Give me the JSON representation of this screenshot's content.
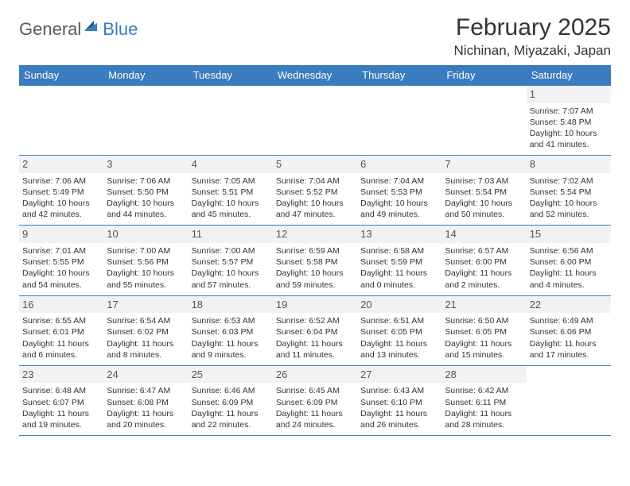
{
  "logo": {
    "part1": "General",
    "part2": "Blue"
  },
  "title": "February 2025",
  "location": "Nichinan, Miyazaki, Japan",
  "colors": {
    "header_bar": "#3b7bbf",
    "logo_gray": "#5a5a5a",
    "logo_blue": "#3b7bbf",
    "daynum_bg": "#f2f2f2",
    "text": "#333333",
    "row_border": "#3b7bbf"
  },
  "weekdays": [
    "Sunday",
    "Monday",
    "Tuesday",
    "Wednesday",
    "Thursday",
    "Friday",
    "Saturday"
  ],
  "weeks": [
    [
      {
        "empty": true
      },
      {
        "empty": true
      },
      {
        "empty": true
      },
      {
        "empty": true
      },
      {
        "empty": true
      },
      {
        "empty": true
      },
      {
        "num": "1",
        "sunrise": "Sunrise: 7:07 AM",
        "sunset": "Sunset: 5:48 PM",
        "daylight": "Daylight: 10 hours and 41 minutes."
      }
    ],
    [
      {
        "num": "2",
        "sunrise": "Sunrise: 7:06 AM",
        "sunset": "Sunset: 5:49 PM",
        "daylight": "Daylight: 10 hours and 42 minutes."
      },
      {
        "num": "3",
        "sunrise": "Sunrise: 7:06 AM",
        "sunset": "Sunset: 5:50 PM",
        "daylight": "Daylight: 10 hours and 44 minutes."
      },
      {
        "num": "4",
        "sunrise": "Sunrise: 7:05 AM",
        "sunset": "Sunset: 5:51 PM",
        "daylight": "Daylight: 10 hours and 45 minutes."
      },
      {
        "num": "5",
        "sunrise": "Sunrise: 7:04 AM",
        "sunset": "Sunset: 5:52 PM",
        "daylight": "Daylight: 10 hours and 47 minutes."
      },
      {
        "num": "6",
        "sunrise": "Sunrise: 7:04 AM",
        "sunset": "Sunset: 5:53 PM",
        "daylight": "Daylight: 10 hours and 49 minutes."
      },
      {
        "num": "7",
        "sunrise": "Sunrise: 7:03 AM",
        "sunset": "Sunset: 5:54 PM",
        "daylight": "Daylight: 10 hours and 50 minutes."
      },
      {
        "num": "8",
        "sunrise": "Sunrise: 7:02 AM",
        "sunset": "Sunset: 5:54 PM",
        "daylight": "Daylight: 10 hours and 52 minutes."
      }
    ],
    [
      {
        "num": "9",
        "sunrise": "Sunrise: 7:01 AM",
        "sunset": "Sunset: 5:55 PM",
        "daylight": "Daylight: 10 hours and 54 minutes."
      },
      {
        "num": "10",
        "sunrise": "Sunrise: 7:00 AM",
        "sunset": "Sunset: 5:56 PM",
        "daylight": "Daylight: 10 hours and 55 minutes."
      },
      {
        "num": "11",
        "sunrise": "Sunrise: 7:00 AM",
        "sunset": "Sunset: 5:57 PM",
        "daylight": "Daylight: 10 hours and 57 minutes."
      },
      {
        "num": "12",
        "sunrise": "Sunrise: 6:59 AM",
        "sunset": "Sunset: 5:58 PM",
        "daylight": "Daylight: 10 hours and 59 minutes."
      },
      {
        "num": "13",
        "sunrise": "Sunrise: 6:58 AM",
        "sunset": "Sunset: 5:59 PM",
        "daylight": "Daylight: 11 hours and 0 minutes."
      },
      {
        "num": "14",
        "sunrise": "Sunrise: 6:57 AM",
        "sunset": "Sunset: 6:00 PM",
        "daylight": "Daylight: 11 hours and 2 minutes."
      },
      {
        "num": "15",
        "sunrise": "Sunrise: 6:56 AM",
        "sunset": "Sunset: 6:00 PM",
        "daylight": "Daylight: 11 hours and 4 minutes."
      }
    ],
    [
      {
        "num": "16",
        "sunrise": "Sunrise: 6:55 AM",
        "sunset": "Sunset: 6:01 PM",
        "daylight": "Daylight: 11 hours and 6 minutes."
      },
      {
        "num": "17",
        "sunrise": "Sunrise: 6:54 AM",
        "sunset": "Sunset: 6:02 PM",
        "daylight": "Daylight: 11 hours and 8 minutes."
      },
      {
        "num": "18",
        "sunrise": "Sunrise: 6:53 AM",
        "sunset": "Sunset: 6:03 PM",
        "daylight": "Daylight: 11 hours and 9 minutes."
      },
      {
        "num": "19",
        "sunrise": "Sunrise: 6:52 AM",
        "sunset": "Sunset: 6:04 PM",
        "daylight": "Daylight: 11 hours and 11 minutes."
      },
      {
        "num": "20",
        "sunrise": "Sunrise: 6:51 AM",
        "sunset": "Sunset: 6:05 PM",
        "daylight": "Daylight: 11 hours and 13 minutes."
      },
      {
        "num": "21",
        "sunrise": "Sunrise: 6:50 AM",
        "sunset": "Sunset: 6:05 PM",
        "daylight": "Daylight: 11 hours and 15 minutes."
      },
      {
        "num": "22",
        "sunrise": "Sunrise: 6:49 AM",
        "sunset": "Sunset: 6:06 PM",
        "daylight": "Daylight: 11 hours and 17 minutes."
      }
    ],
    [
      {
        "num": "23",
        "sunrise": "Sunrise: 6:48 AM",
        "sunset": "Sunset: 6:07 PM",
        "daylight": "Daylight: 11 hours and 19 minutes."
      },
      {
        "num": "24",
        "sunrise": "Sunrise: 6:47 AM",
        "sunset": "Sunset: 6:08 PM",
        "daylight": "Daylight: 11 hours and 20 minutes."
      },
      {
        "num": "25",
        "sunrise": "Sunrise: 6:46 AM",
        "sunset": "Sunset: 6:09 PM",
        "daylight": "Daylight: 11 hours and 22 minutes."
      },
      {
        "num": "26",
        "sunrise": "Sunrise: 6:45 AM",
        "sunset": "Sunset: 6:09 PM",
        "daylight": "Daylight: 11 hours and 24 minutes."
      },
      {
        "num": "27",
        "sunrise": "Sunrise: 6:43 AM",
        "sunset": "Sunset: 6:10 PM",
        "daylight": "Daylight: 11 hours and 26 minutes."
      },
      {
        "num": "28",
        "sunrise": "Sunrise: 6:42 AM",
        "sunset": "Sunset: 6:11 PM",
        "daylight": "Daylight: 11 hours and 28 minutes."
      },
      {
        "empty": true
      }
    ]
  ]
}
